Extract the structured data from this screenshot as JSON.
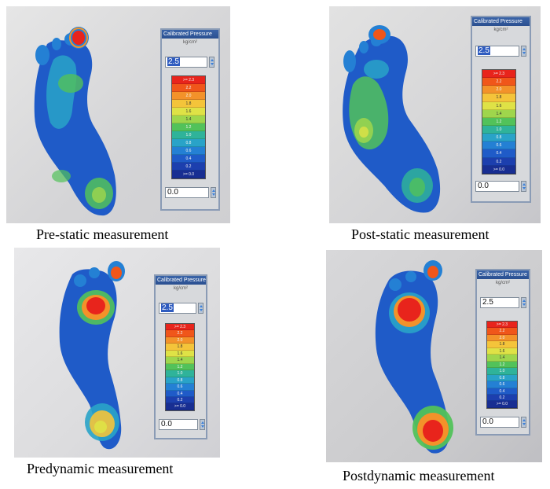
{
  "panels": [
    {
      "caption": "Pre-static measurement",
      "dialog": {
        "title": "Calibrated Pressure",
        "unit": "kg/cm²",
        "max_value": "2.5",
        "min_value": "0.0",
        "scale_labels": [
          ">= 2.3",
          "2.2",
          "2.0",
          "1.8",
          "1.6",
          "1.4",
          "1.2",
          "1.0",
          "0.8",
          "0.6",
          "0.4",
          "0.2",
          ">= 0.0"
        ]
      }
    },
    {
      "caption": "Post-static measurement",
      "dialog": {
        "title": "Calibrated Pressure",
        "unit": "kg/cm²",
        "max_value": "2.5",
        "min_value": "0.0",
        "scale_labels": [
          ">= 2.3",
          "2.2",
          "2.0",
          "1.8",
          "1.6",
          "1.4",
          "1.2",
          "1.0",
          "0.8",
          "0.6",
          "0.4",
          "0.2",
          ">= 0.0"
        ]
      }
    },
    {
      "caption": "Predynamic measurement",
      "dialog": {
        "title": "Calibrated Pressure",
        "unit": "kg/cm²",
        "max_value": "2.5",
        "min_value": "0.0",
        "scale_labels": [
          ">= 2.3",
          "2.2",
          "2.0",
          "1.8",
          "1.6",
          "1.4",
          "1.2",
          "1.0",
          "0.8",
          "0.6",
          "0.4",
          "0.2",
          ">= 0.0"
        ]
      }
    },
    {
      "caption": "Postdynamic measurement",
      "dialog": {
        "title": "Calibrated Pressure",
        "unit": "kg/cm²",
        "max_value": "2.5",
        "min_value": "0.0",
        "scale_labels": [
          ">= 2.3",
          "2.2",
          "2.0",
          "1.8",
          "1.6",
          "1.4",
          "1.2",
          "1.0",
          "0.8",
          "0.6",
          "0.4",
          "0.2",
          ">= 0.0"
        ]
      }
    }
  ],
  "scale_colors": [
    "#e8241c",
    "#f0561a",
    "#f3922a",
    "#f4c43a",
    "#dfe246",
    "#9fd64c",
    "#52c25a",
    "#2fb39a",
    "#29a3c8",
    "#2480d4",
    "#1f5bc8",
    "#1c3fae",
    "#182e92"
  ]
}
